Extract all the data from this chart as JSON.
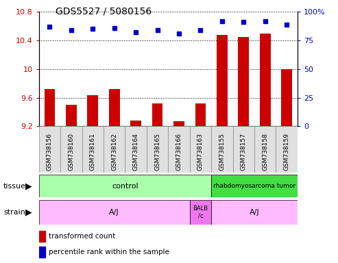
{
  "title": "GDS5527 / 5080156",
  "samples": [
    "GSM738156",
    "GSM738160",
    "GSM738161",
    "GSM738162",
    "GSM738164",
    "GSM738165",
    "GSM738166",
    "GSM738163",
    "GSM738155",
    "GSM738157",
    "GSM738158",
    "GSM738159"
  ],
  "transformed_count": [
    9.72,
    9.5,
    9.63,
    9.72,
    9.28,
    9.52,
    9.27,
    9.52,
    10.48,
    10.45,
    10.5,
    10.0
  ],
  "percentile_rank": [
    87,
    84,
    85,
    86,
    82,
    84,
    81,
    84,
    92,
    91,
    92,
    89
  ],
  "ylim_left": [
    9.2,
    10.8
  ],
  "ylim_right": [
    0,
    100
  ],
  "yticks_left": [
    9.2,
    9.6,
    10.0,
    10.4,
    10.8
  ],
  "ytick_labels_left": [
    "9.2",
    "9.6",
    "10",
    "10.4",
    "10.8"
  ],
  "yticks_right": [
    0,
    25,
    50,
    75,
    100
  ],
  "ytick_labels_right": [
    "0",
    "25",
    "50",
    "75",
    "100%"
  ],
  "bar_color": "#cc0000",
  "dot_color": "#0000cc",
  "tissue_control_color": "#aaffaa",
  "tissue_rhab_color": "#44dd44",
  "strain_aj_color": "#ffbbff",
  "strain_balb_color": "#ee77ee",
  "cell_bg_color": "#d8d8d8",
  "legend_bar": "transformed count",
  "legend_dot": "percentile rank within the sample",
  "bar_color_red": "#cc0000",
  "dot_color_blue": "#0000cc",
  "title_fontsize": 10,
  "tick_fontsize": 8,
  "label_fontsize": 8,
  "anno_fontsize": 8
}
